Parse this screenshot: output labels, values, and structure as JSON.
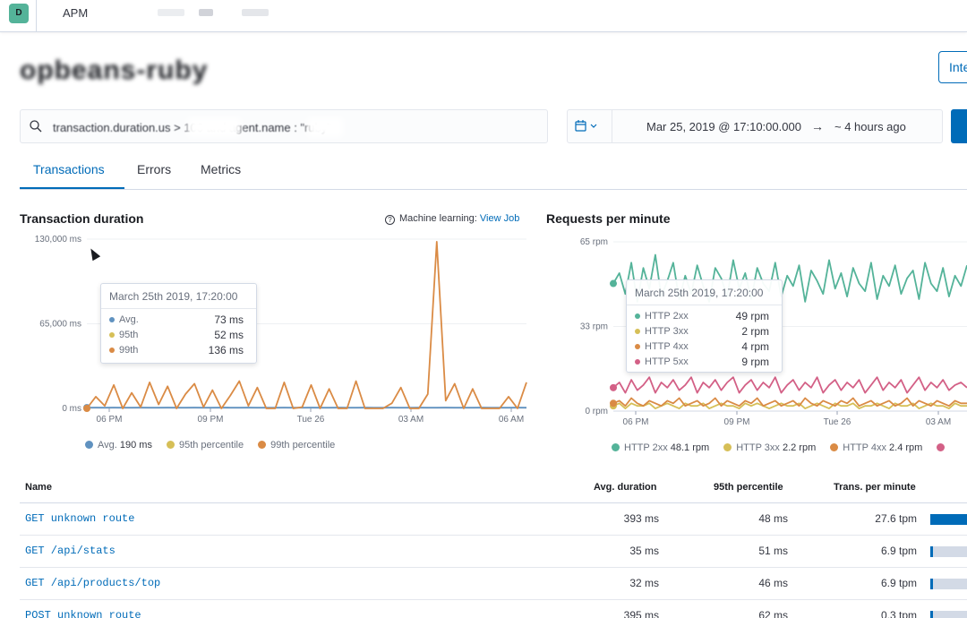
{
  "header": {
    "avatar_letter": "D",
    "app_name": "APM"
  },
  "page": {
    "title": "opbeans-ruby",
    "integrations_label": "Inte"
  },
  "search": {
    "query": "transaction.duration.us > 100 and agent.name : \"ruby\""
  },
  "date_range": {
    "start": "Mar 25, 2019 @ 17:10:00.000",
    "arrow": "→",
    "end": "~ 4 hours ago"
  },
  "tabs": [
    {
      "label": "Transactions",
      "active": true
    },
    {
      "label": "Errors",
      "active": false
    },
    {
      "label": "Metrics",
      "active": false
    }
  ],
  "duration_panel": {
    "title": "Transaction duration",
    "ml_text": "Machine learning:",
    "ml_link": "View Job",
    "tooltip": {
      "time": "March 25th 2019, 17:20:00",
      "rows": [
        {
          "label": "Avg.",
          "value": "73 ms",
          "color": "#6092c0"
        },
        {
          "label": "95th",
          "value": "52 ms",
          "color": "#d6bf57"
        },
        {
          "label": "99th",
          "value": "136 ms",
          "color": "#da8b45"
        }
      ]
    },
    "legend": [
      {
        "label": "Avg.",
        "value": "190 ms",
        "color": "#6092c0"
      },
      {
        "label": "95th percentile",
        "value": "",
        "color": "#d6bf57"
      },
      {
        "label": "99th percentile",
        "value": "",
        "color": "#da8b45"
      }
    ]
  },
  "rpm_panel": {
    "title": "Requests per minute",
    "tooltip": {
      "time": "March 25th 2019, 17:20:00",
      "rows": [
        {
          "label": "HTTP 2xx",
          "value": "49 rpm",
          "color": "#54b399"
        },
        {
          "label": "HTTP 3xx",
          "value": "2 rpm",
          "color": "#d6bf57"
        },
        {
          "label": "HTTP 4xx",
          "value": "4 rpm",
          "color": "#da8b45"
        },
        {
          "label": "HTTP 5xx",
          "value": "9 rpm",
          "color": "#d36086"
        }
      ]
    },
    "legend": [
      {
        "label": "HTTP 2xx",
        "value": "48.1 rpm",
        "color": "#54b399"
      },
      {
        "label": "HTTP 3xx",
        "value": "2.2 rpm",
        "color": "#d6bf57"
      },
      {
        "label": "HTTP 4xx",
        "value": "2.4 rpm",
        "color": "#da8b45"
      },
      {
        "label": "",
        "value": "",
        "color": "#d36086"
      }
    ]
  },
  "chart_data": [
    {
      "type": "line",
      "x_ticks": [
        "06 PM",
        "09 PM",
        "Tue 26",
        "03 AM",
        "06 AM"
      ],
      "y_ticks": [
        "130,000 ms",
        "65,000 ms",
        "0 ms"
      ],
      "ylim": [
        0,
        130000
      ],
      "series": [
        {
          "name": "Avg.",
          "color": "#6092c0",
          "values": [
            600,
            700,
            650,
            700,
            600,
            650,
            700,
            600,
            650,
            700,
            600,
            650,
            700,
            650,
            600,
            700,
            650,
            600,
            700,
            650,
            600,
            650,
            700,
            650,
            600,
            700,
            650,
            600,
            700,
            650,
            600,
            700,
            650,
            650,
            700,
            600,
            650,
            700,
            650,
            600,
            700,
            650,
            650,
            600,
            700,
            650,
            600,
            650,
            700,
            600
          ]
        },
        {
          "name": "99th percentile",
          "color": "#da8b45",
          "values": [
            0,
            9000,
            2000,
            18000,
            0,
            12000,
            1000,
            20000,
            3000,
            17000,
            0,
            11000,
            19000,
            1000,
            14000,
            0,
            10000,
            21000,
            2000,
            16000,
            0,
            0,
            20000,
            0,
            1000,
            18000,
            0,
            15000,
            0,
            0,
            21000,
            0,
            0,
            0,
            4000,
            16000,
            0,
            0,
            11000,
            128000,
            6000,
            19000,
            0,
            15000,
            0,
            0,
            0,
            9000,
            0,
            20000
          ]
        }
      ]
    },
    {
      "type": "line",
      "x_ticks": [
        "06 PM",
        "09 PM",
        "Tue 26",
        "03 AM"
      ],
      "y_ticks": [
        "65 rpm",
        "33 rpm",
        "0 rpm"
      ],
      "ylim": [
        0,
        65
      ],
      "series": [
        {
          "name": "HTTP 2xx",
          "color": "#54b399",
          "values": [
            49,
            53,
            45,
            57,
            42,
            55,
            47,
            60,
            44,
            50,
            57,
            43,
            52,
            45,
            56,
            48,
            42,
            55,
            51,
            44,
            58,
            47,
            53,
            43,
            55,
            49,
            46,
            57,
            44,
            52,
            48,
            56,
            42,
            54,
            50,
            45,
            58,
            47,
            53,
            44,
            55,
            49,
            46,
            57,
            43,
            52,
            48,
            56,
            45,
            51,
            54,
            43,
            57,
            49,
            46,
            55,
            44,
            52,
            48,
            56
          ]
        },
        {
          "name": "HTTP 3xx",
          "color": "#d6bf57",
          "values": [
            2,
            3,
            1,
            3,
            2,
            2,
            3,
            1,
            2,
            3,
            2,
            1,
            3,
            2,
            2,
            3,
            1,
            2,
            3,
            2,
            2,
            1,
            3,
            2,
            3,
            2,
            1,
            2,
            3,
            2,
            2,
            3,
            1,
            2,
            3,
            2,
            1,
            3,
            2,
            2,
            3,
            1,
            2,
            2,
            3,
            2,
            1,
            3,
            2,
            2,
            3,
            1,
            2,
            3,
            2,
            2,
            1,
            3,
            2,
            2
          ]
        },
        {
          "name": "HTTP 4xx",
          "color": "#da8b45",
          "values": [
            3,
            4,
            2,
            5,
            3,
            2,
            4,
            3,
            2,
            4,
            3,
            5,
            2,
            3,
            4,
            2,
            3,
            5,
            2,
            4,
            3,
            2,
            4,
            3,
            5,
            2,
            3,
            4,
            2,
            3,
            4,
            2,
            5,
            3,
            2,
            4,
            3,
            2,
            4,
            3,
            5,
            2,
            3,
            4,
            2,
            3,
            4,
            2,
            3,
            5,
            2,
            4,
            3,
            2,
            4,
            3,
            2,
            4,
            3,
            3
          ]
        },
        {
          "name": "HTTP 5xx",
          "color": "#d36086",
          "values": [
            9,
            11,
            7,
            12,
            8,
            10,
            13,
            7,
            11,
            9,
            12,
            8,
            10,
            13,
            7,
            11,
            9,
            12,
            8,
            11,
            13,
            7,
            10,
            12,
            8,
            11,
            9,
            13,
            7,
            10,
            12,
            8,
            11,
            9,
            13,
            7,
            10,
            12,
            8,
            11,
            9,
            12,
            7,
            10,
            13,
            8,
            11,
            9,
            12,
            7,
            10,
            13,
            8,
            11,
            9,
            12,
            8,
            10,
            11,
            9
          ]
        }
      ]
    }
  ],
  "table": {
    "headers": [
      "Name",
      "Avg. duration",
      "95th percentile",
      "Trans. per minute"
    ],
    "rows": [
      {
        "name": "GET unknown route",
        "avg": "393 ms",
        "p95": "48 ms",
        "tpm": "27.6 tpm",
        "impact": 1.0
      },
      {
        "name": "GET /api/stats",
        "avg": "35 ms",
        "p95": "51 ms",
        "tpm": "6.9 tpm",
        "impact": 0.05
      },
      {
        "name": "GET /api/products/top",
        "avg": "32 ms",
        "p95": "46 ms",
        "tpm": "6.9 tpm",
        "impact": 0.05
      },
      {
        "name": "POST unknown route",
        "avg": "395 ms",
        "p95": "62 ms",
        "tpm": "0.3 tpm",
        "impact": 0.05
      }
    ]
  }
}
